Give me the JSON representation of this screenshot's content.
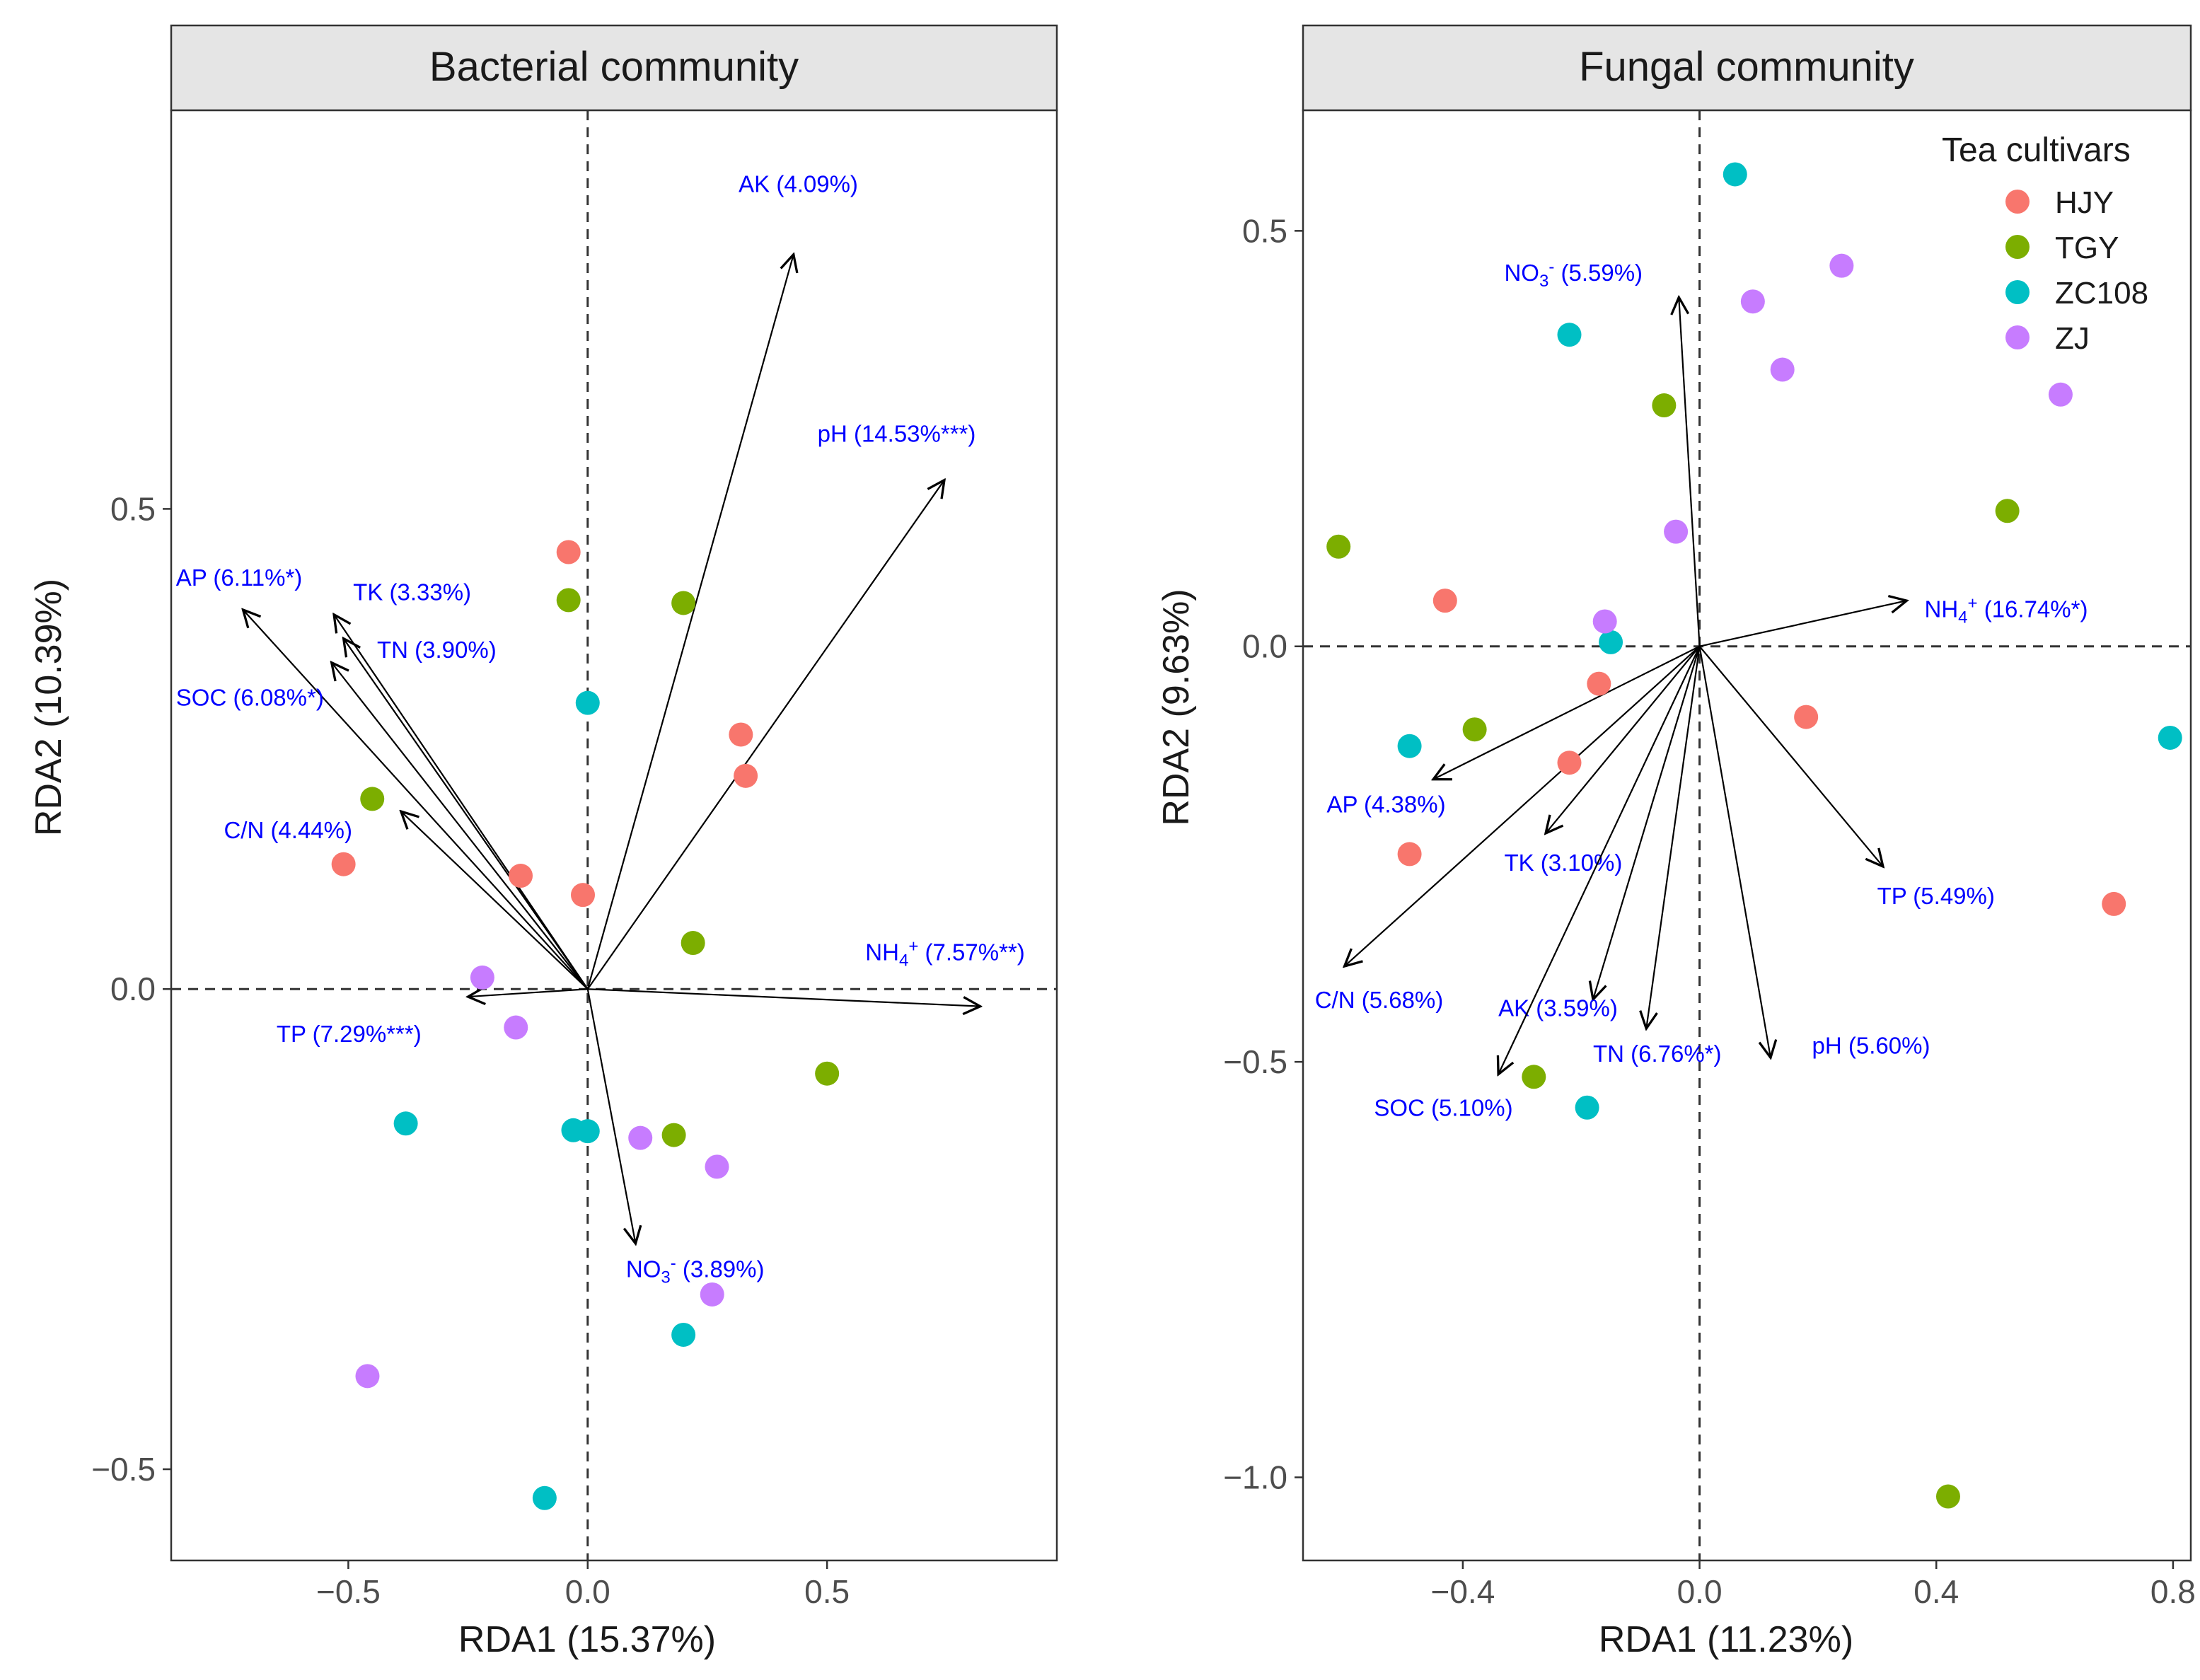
{
  "colors": {
    "HJY": "#F8766D",
    "TGY": "#7CAE00",
    "ZC108": "#00BFC4",
    "ZJ": "#C77CFF",
    "arrow_label": "#0000FF",
    "strip_bg": "#E5E5E5"
  },
  "legend": {
    "title": "Tea cultivars",
    "items": [
      {
        "label": "HJY",
        "group": "HJY"
      },
      {
        "label": "TGY",
        "group": "TGY"
      },
      {
        "label": "ZC108",
        "group": "ZC108"
      },
      {
        "label": "ZJ",
        "group": "ZJ"
      }
    ]
  },
  "chart_data": [
    {
      "type": "scatter",
      "title": "Bacterial community",
      "xlabel": "RDA1 (15.37%)",
      "ylabel": "RDA2 (10.39%)",
      "xlim": [
        -0.87,
        0.98
      ],
      "ylim": [
        -0.595,
        0.915
      ],
      "xticks": [
        {
          "v": -0.5,
          "label": "−0.5"
        },
        {
          "v": 0.0,
          "label": "0.0"
        },
        {
          "v": 0.5,
          "label": "0.5"
        }
      ],
      "yticks": [
        {
          "v": -0.5,
          "label": "−0.5"
        },
        {
          "v": 0.0,
          "label": "0.0"
        },
        {
          "v": 0.5,
          "label": "0.5"
        }
      ],
      "points": [
        {
          "group": "HJY",
          "x": -0.04,
          "y": 0.455
        },
        {
          "group": "HJY",
          "x": 0.32,
          "y": 0.265
        },
        {
          "group": "HJY",
          "x": 0.33,
          "y": 0.222
        },
        {
          "group": "HJY",
          "x": -0.51,
          "y": 0.13
        },
        {
          "group": "HJY",
          "x": -0.14,
          "y": 0.118
        },
        {
          "group": "HJY",
          "x": -0.01,
          "y": 0.098
        },
        {
          "group": "TGY",
          "x": -0.04,
          "y": 0.405
        },
        {
          "group": "TGY",
          "x": 0.2,
          "y": 0.402
        },
        {
          "group": "TGY",
          "x": -0.45,
          "y": 0.198
        },
        {
          "group": "TGY",
          "x": 0.22,
          "y": 0.048
        },
        {
          "group": "TGY",
          "x": 0.5,
          "y": -0.088
        },
        {
          "group": "TGY",
          "x": 0.18,
          "y": -0.152
        },
        {
          "group": "ZC108",
          "x": 0.0,
          "y": 0.298
        },
        {
          "group": "ZC108",
          "x": -0.38,
          "y": -0.14
        },
        {
          "group": "ZC108",
          "x": -0.03,
          "y": -0.147
        },
        {
          "group": "ZC108",
          "x": 0.0,
          "y": -0.148
        },
        {
          "group": "ZC108",
          "x": 0.2,
          "y": -0.36
        },
        {
          "group": "ZC108",
          "x": -0.09,
          "y": -0.53
        },
        {
          "group": "ZJ",
          "x": -0.22,
          "y": 0.012
        },
        {
          "group": "ZJ",
          "x": -0.15,
          "y": -0.04
        },
        {
          "group": "ZJ",
          "x": 0.11,
          "y": -0.155
        },
        {
          "group": "ZJ",
          "x": 0.27,
          "y": -0.185
        },
        {
          "group": "ZJ",
          "x": 0.26,
          "y": -0.318
        },
        {
          "group": "ZJ",
          "x": -0.46,
          "y": -0.403
        }
      ],
      "arrows": [
        {
          "name": "AK",
          "label": "AK (4.09%)",
          "x": 0.43,
          "y": 0.765,
          "lx": 0.44,
          "ly": 0.83,
          "anchor": "middle",
          "sup": "",
          "sub": ""
        },
        {
          "name": "pH",
          "label": "pH (14.53%***)",
          "x": 0.745,
          "y": 0.53,
          "lx": 0.48,
          "ly": 0.57,
          "anchor": "start",
          "sup": "",
          "sub": ""
        },
        {
          "name": "AP",
          "label": "AP (6.11%*)",
          "x": -0.72,
          "y": 0.395,
          "lx": -0.86,
          "ly": 0.42,
          "anchor": "start",
          "sup": "",
          "sub": ""
        },
        {
          "name": "TK",
          "label": "TK (3.33%)",
          "x": -0.53,
          "y": 0.39,
          "lx": -0.49,
          "ly": 0.405,
          "anchor": "start",
          "sup": "",
          "sub": ""
        },
        {
          "name": "TN",
          "label": "TN (3.90%)",
          "x": -0.51,
          "y": 0.365,
          "lx": -0.44,
          "ly": 0.345,
          "anchor": "start",
          "sup": "",
          "sub": ""
        },
        {
          "name": "SOC",
          "label": "SOC (6.08%*)",
          "x": -0.535,
          "y": 0.34,
          "lx": -0.86,
          "ly": 0.295,
          "anchor": "start",
          "sup": "",
          "sub": ""
        },
        {
          "name": "C/N",
          "label": "C/N (4.44%)",
          "x": -0.39,
          "y": 0.185,
          "lx": -0.76,
          "ly": 0.157,
          "anchor": "start",
          "sup": "",
          "sub": ""
        },
        {
          "name": "NH4",
          "label": "NH4+ (7.57%**)",
          "x": 0.82,
          "y": -0.018,
          "lx": 0.58,
          "ly": 0.03,
          "anchor": "start",
          "sup": "+",
          "sub": "4",
          "pre": "NH",
          "post": " (7.57%**)"
        },
        {
          "name": "TP",
          "label": "TP (7.29%***)",
          "x": -0.25,
          "y": -0.008,
          "lx": -0.65,
          "ly": -0.055,
          "anchor": "start",
          "sup": "",
          "sub": ""
        },
        {
          "name": "NO3",
          "label": "NO3- (3.89%)",
          "x": 0.1,
          "y": -0.265,
          "lx": 0.08,
          "ly": -0.3,
          "anchor": "start",
          "sup": "-",
          "sub": "3",
          "pre": "NO",
          "post": " (3.89%)"
        }
      ]
    },
    {
      "type": "scatter",
      "title": "Fungal community",
      "xlabel": "RDA1 (11.23%)",
      "ylabel": "RDA2 (9.63%)",
      "xlim": [
        -0.67,
        0.83
      ],
      "ylim": [
        -1.1,
        0.645
      ],
      "xticks": [
        {
          "v": -0.4,
          "label": "−0.4"
        },
        {
          "v": 0.0,
          "label": "0.0"
        },
        {
          "v": 0.4,
          "label": "0.4"
        },
        {
          "v": 0.8,
          "label": "0.8"
        }
      ],
      "yticks": [
        {
          "v": -1.0,
          "label": "−1.0"
        },
        {
          "v": -0.5,
          "label": "−0.5"
        },
        {
          "v": 0.0,
          "label": "0.0"
        },
        {
          "v": 0.5,
          "label": "0.5"
        }
      ],
      "points": [
        {
          "group": "HJY",
          "x": -0.43,
          "y": 0.055
        },
        {
          "group": "HJY",
          "x": -0.17,
          "y": -0.045
        },
        {
          "group": "HJY",
          "x": -0.22,
          "y": -0.14
        },
        {
          "group": "HJY",
          "x": -0.49,
          "y": -0.25
        },
        {
          "group": "HJY",
          "x": 0.18,
          "y": -0.085
        },
        {
          "group": "HJY",
          "x": 0.7,
          "y": -0.31
        },
        {
          "group": "TGY",
          "x": -0.06,
          "y": 0.29
        },
        {
          "group": "TGY",
          "x": -0.61,
          "y": 0.12
        },
        {
          "group": "TGY",
          "x": 0.52,
          "y": 0.163
        },
        {
          "group": "TGY",
          "x": -0.38,
          "y": -0.1
        },
        {
          "group": "TGY",
          "x": -0.28,
          "y": -0.518
        },
        {
          "group": "TGY",
          "x": 0.42,
          "y": -1.023
        },
        {
          "group": "ZC108",
          "x": 0.06,
          "y": 0.568
        },
        {
          "group": "ZC108",
          "x": -0.22,
          "y": 0.375
        },
        {
          "group": "ZC108",
          "x": -0.15,
          "y": 0.005
        },
        {
          "group": "ZC108",
          "x": -0.49,
          "y": -0.12
        },
        {
          "group": "ZC108",
          "x": -0.19,
          "y": -0.555
        },
        {
          "group": "ZC108",
          "x": 0.795,
          "y": -0.11
        },
        {
          "group": "ZJ",
          "x": 0.24,
          "y": 0.458
        },
        {
          "group": "ZJ",
          "x": 0.09,
          "y": 0.415
        },
        {
          "group": "ZJ",
          "x": 0.14,
          "y": 0.333
        },
        {
          "group": "ZJ",
          "x": 0.61,
          "y": 0.303
        },
        {
          "group": "ZJ",
          "x": -0.04,
          "y": 0.138
        },
        {
          "group": "ZJ",
          "x": -0.16,
          "y": 0.03
        }
      ],
      "arrows": [
        {
          "name": "NO3",
          "label": "NO3- (5.59%)",
          "x": -0.035,
          "y": 0.42,
          "lx": -0.33,
          "ly": 0.44,
          "anchor": "start",
          "sup": "-",
          "sub": "3",
          "pre": "NO",
          "post": " (5.59%)"
        },
        {
          "name": "NH4",
          "label": "NH4+ (16.74%*)",
          "x": 0.35,
          "y": 0.055,
          "lx": 0.38,
          "ly": 0.035,
          "anchor": "start",
          "sup": "+",
          "sub": "4",
          "pre": "NH",
          "post": " (16.74%*)"
        },
        {
          "name": "AP",
          "label": "AP (4.38%)",
          "x": -0.45,
          "y": -0.16,
          "lx": -0.63,
          "ly": -0.2,
          "anchor": "start",
          "sup": "",
          "sub": ""
        },
        {
          "name": "TK",
          "label": "TK (3.10%)",
          "x": -0.26,
          "y": -0.225,
          "lx": -0.33,
          "ly": -0.27,
          "anchor": "start",
          "sup": "",
          "sub": ""
        },
        {
          "name": "TP",
          "label": "TP (5.49%)",
          "x": 0.31,
          "y": -0.265,
          "lx": 0.3,
          "ly": -0.31,
          "anchor": "start",
          "sup": "",
          "sub": ""
        },
        {
          "name": "C/N",
          "label": "C/N (5.68%)",
          "x": -0.6,
          "y": -0.385,
          "lx": -0.65,
          "ly": -0.435,
          "anchor": "start",
          "sup": "",
          "sub": ""
        },
        {
          "name": "AK",
          "label": "AK (3.59%)",
          "x": -0.18,
          "y": -0.425,
          "lx": -0.34,
          "ly": -0.445,
          "anchor": "start",
          "sup": "",
          "sub": ""
        },
        {
          "name": "TN",
          "label": "TN (6.76%*)",
          "x": -0.09,
          "y": -0.46,
          "lx": -0.18,
          "ly": -0.5,
          "anchor": "start",
          "sup": "",
          "sub": ""
        },
        {
          "name": "pH",
          "label": "pH (5.60%)",
          "x": 0.12,
          "y": -0.495,
          "lx": 0.19,
          "ly": -0.49,
          "anchor": "start",
          "sup": "",
          "sub": ""
        },
        {
          "name": "SOC",
          "label": "SOC (5.10%)",
          "x": -0.34,
          "y": -0.515,
          "lx": -0.55,
          "ly": -0.565,
          "anchor": "start",
          "sup": "",
          "sub": ""
        }
      ]
    }
  ]
}
